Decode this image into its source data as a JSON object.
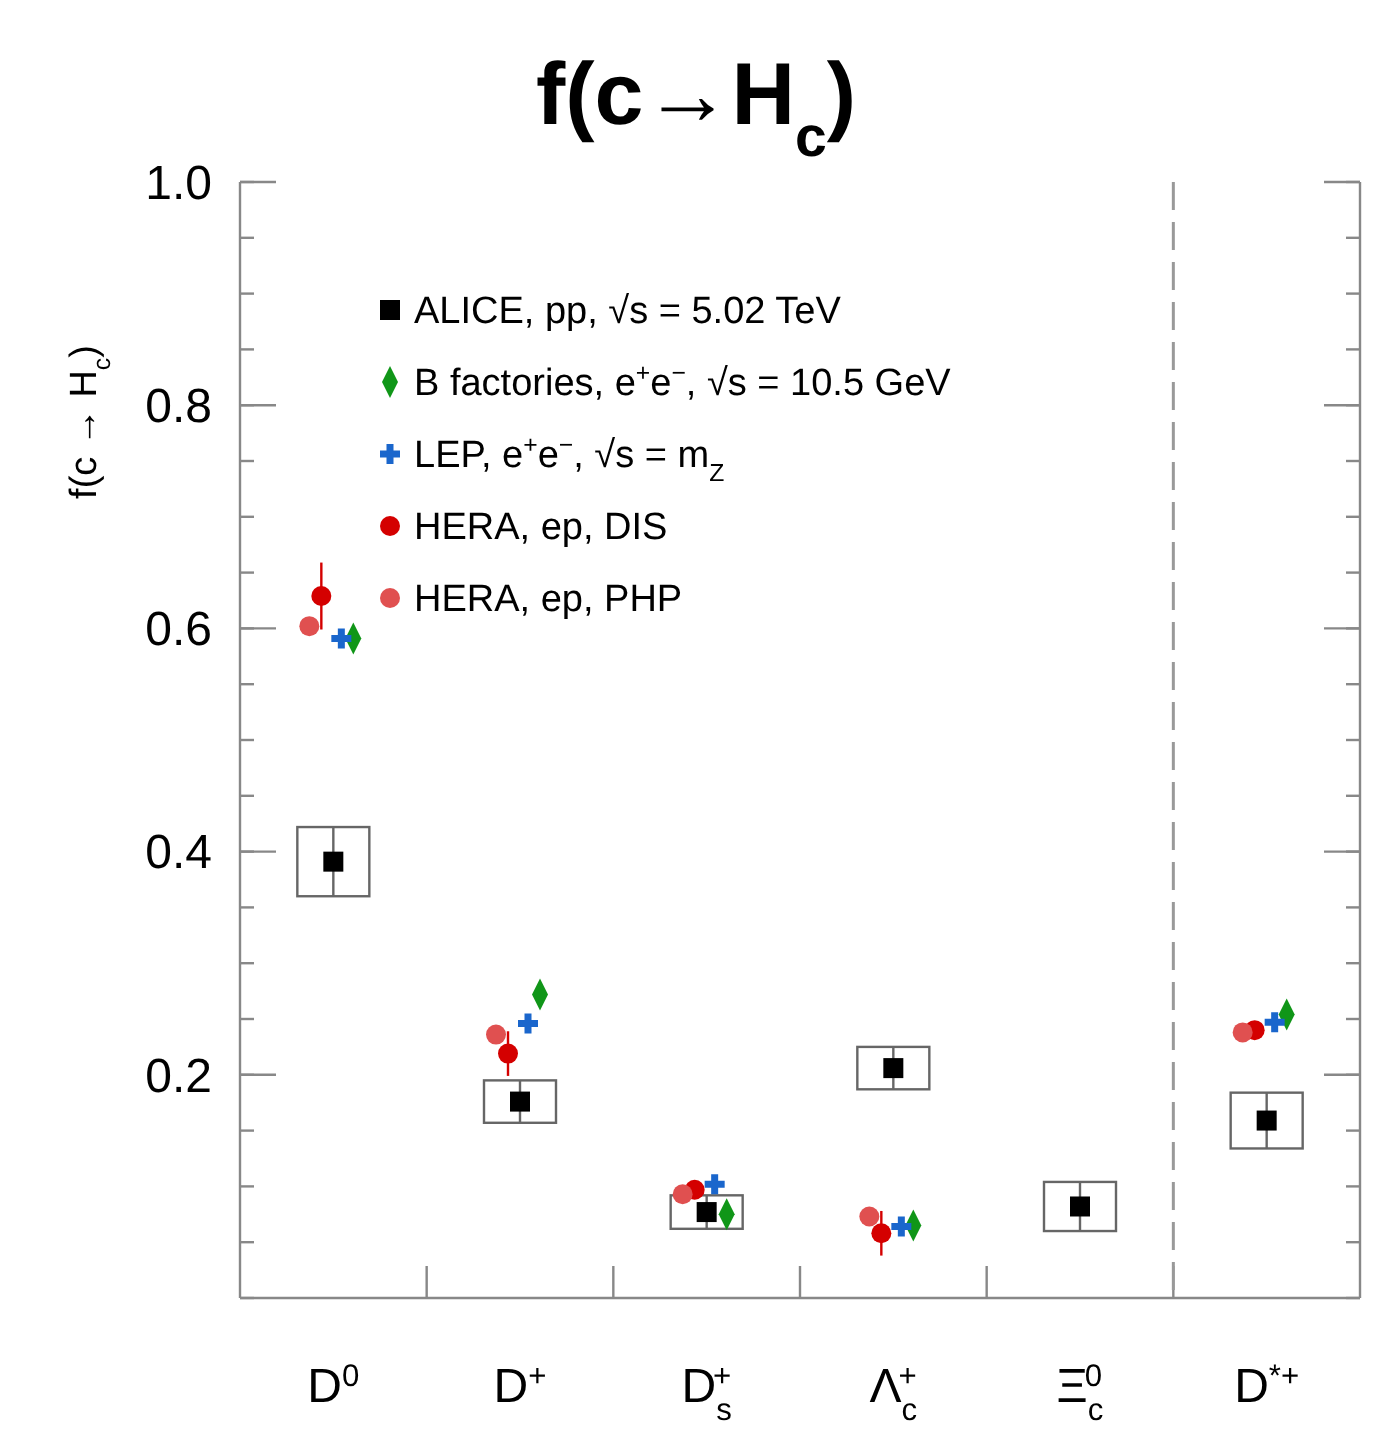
{
  "chart_data": {
    "type": "scatter",
    "title": "f(c→H$_{c}$)",
    "ylabel": "f(c → H$_{c}$)",
    "categories": [
      "D$^{0}$",
      "D$^{+}$",
      "D$_{s}$$^{+}$",
      "Λ$_{c}$$^{+}$",
      "Ξ$_{c}$$^{0}$",
      "D$^{*+}$"
    ],
    "ylim": [
      0,
      1
    ],
    "yticks": [
      0.2,
      0.4,
      0.6,
      0.8,
      {
        "value": 1,
        "label": "1.0"
      }
    ],
    "legend": "top left",
    "grid": false,
    "series": [
      {
        "name": "ALICE, pp, √s = 5.02 TeV",
        "color": "#000000",
        "marker": "square",
        "values": [
          0.391,
          0.176,
          0.077,
          0.206,
          0.082,
          0.159
        ],
        "errors": [
          0.031,
          0.019,
          0.015,
          0.019,
          0.022,
          0.025
        ]
      },
      {
        "name": "B factories, e$^{+}$e$^{−}$, √s = 10.5 GeV",
        "color": "#109618",
        "marker": "diamond",
        "values": [
          0.591,
          0.272,
          0.075,
          0.065,
          null,
          0.254
        ]
      },
      {
        "name": "LEP, e$^{+}$e$^{−}$, √s = m$_{Z}$",
        "color": "#1a66cc",
        "marker": "cross",
        "values": [
          0.591,
          0.246,
          0.102,
          0.064,
          null,
          0.247
        ]
      },
      {
        "name": "HERA, ep, DIS",
        "color": "#d40000",
        "marker": "circle",
        "values": [
          0.629,
          0.219,
          0.097,
          0.058,
          null,
          0.24
        ],
        "errors": [
          0.03,
          0.02,
          null,
          0.02,
          null,
          null
        ]
      },
      {
        "name": "HERA, ep, PHP",
        "color": "#e05050",
        "marker": "circle",
        "values": [
          0.602,
          0.236,
          0.093,
          0.073,
          null,
          0.238
        ]
      }
    ]
  }
}
